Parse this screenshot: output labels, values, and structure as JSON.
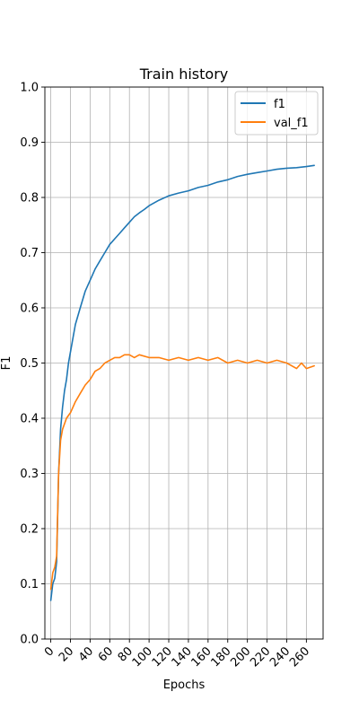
{
  "chart_data": {
    "type": "line",
    "title": "Train history",
    "xlabel": "Epochs",
    "ylabel": "F1",
    "xlim": [
      -6,
      277
    ],
    "ylim": [
      0,
      1
    ],
    "xticks": [
      0,
      20,
      40,
      60,
      80,
      100,
      120,
      140,
      160,
      180,
      200,
      220,
      240,
      260
    ],
    "yticks": [
      0.0,
      0.1,
      0.2,
      0.3,
      0.4,
      0.5,
      0.6,
      0.7,
      0.8,
      0.9,
      1.0
    ],
    "xtick_labels": [
      "0",
      "20",
      "40",
      "60",
      "80",
      "100",
      "120",
      "140",
      "160",
      "180",
      "200",
      "220",
      "240",
      "260"
    ],
    "ytick_labels": [
      "0.0",
      "0.1",
      "0.2",
      "0.3",
      "0.4",
      "0.5",
      "0.6",
      "0.7",
      "0.8",
      "0.9",
      "1.0"
    ],
    "grid": true,
    "legend_position": "top-right",
    "series": [
      {
        "name": "f1",
        "color": "#1f77b4",
        "x": [
          0,
          2,
          4,
          6,
          8,
          10,
          12,
          14,
          16,
          18,
          20,
          25,
          30,
          35,
          40,
          45,
          50,
          55,
          60,
          65,
          70,
          75,
          80,
          85,
          90,
          95,
          100,
          110,
          120,
          130,
          140,
          150,
          160,
          170,
          180,
          190,
          200,
          210,
          220,
          230,
          240,
          250,
          260,
          268
        ],
        "y": [
          0.07,
          0.1,
          0.11,
          0.14,
          0.3,
          0.38,
          0.42,
          0.45,
          0.47,
          0.5,
          0.52,
          0.57,
          0.6,
          0.63,
          0.65,
          0.67,
          0.685,
          0.7,
          0.715,
          0.725,
          0.735,
          0.745,
          0.755,
          0.765,
          0.772,
          0.778,
          0.785,
          0.795,
          0.803,
          0.808,
          0.812,
          0.818,
          0.822,
          0.828,
          0.832,
          0.838,
          0.842,
          0.845,
          0.848,
          0.851,
          0.853,
          0.854,
          0.856,
          0.858
        ]
      },
      {
        "name": "val_f1",
        "color": "#ff7f0e",
        "x": [
          0,
          2,
          4,
          6,
          8,
          10,
          12,
          14,
          16,
          18,
          20,
          25,
          30,
          35,
          40,
          45,
          50,
          55,
          60,
          65,
          70,
          75,
          80,
          85,
          90,
          100,
          110,
          120,
          130,
          140,
          150,
          160,
          170,
          180,
          190,
          200,
          210,
          220,
          230,
          240,
          250,
          255,
          260,
          268
        ],
        "y": [
          0.09,
          0.12,
          0.13,
          0.15,
          0.3,
          0.36,
          0.38,
          0.39,
          0.4,
          0.405,
          0.41,
          0.43,
          0.445,
          0.46,
          0.47,
          0.485,
          0.49,
          0.5,
          0.505,
          0.51,
          0.51,
          0.515,
          0.515,
          0.51,
          0.515,
          0.51,
          0.51,
          0.505,
          0.51,
          0.505,
          0.51,
          0.505,
          0.51,
          0.5,
          0.505,
          0.5,
          0.505,
          0.5,
          0.505,
          0.5,
          0.49,
          0.5,
          0.49,
          0.495
        ]
      }
    ]
  }
}
